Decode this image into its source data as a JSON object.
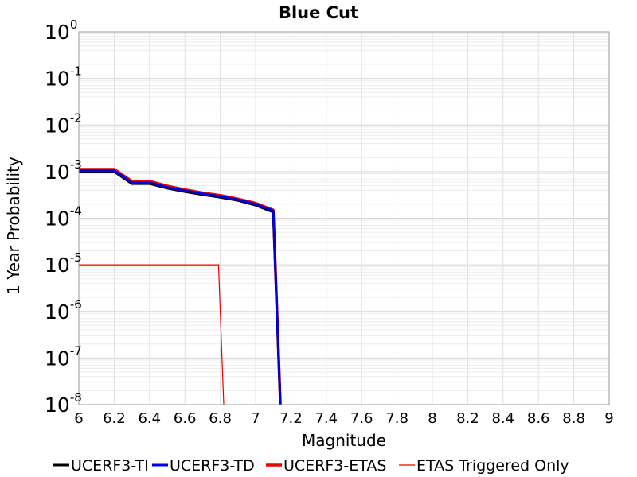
{
  "chart_data": {
    "type": "line",
    "title": "Blue Cut",
    "xlabel": "Magnitude",
    "ylabel": "1 Year Probability",
    "xlim": [
      6,
      9
    ],
    "ylim": [
      1e-08,
      1
    ],
    "yscale": "log",
    "x_ticks": [
      "6",
      "6.2",
      "6.4",
      "6.6",
      "6.8",
      "7",
      "7.2",
      "7.4",
      "7.6",
      "7.8",
      "8",
      "8.2",
      "8.4",
      "8.6",
      "8.8",
      "9"
    ],
    "y_ticks": [
      {
        "base": "10",
        "exp": "0"
      },
      {
        "base": "10",
        "exp": "-1"
      },
      {
        "base": "10",
        "exp": "-2"
      },
      {
        "base": "10",
        "exp": "-3"
      },
      {
        "base": "10",
        "exp": "-4"
      },
      {
        "base": "10",
        "exp": "-5"
      },
      {
        "base": "10",
        "exp": "-6"
      },
      {
        "base": "10",
        "exp": "-7"
      },
      {
        "base": "10",
        "exp": "-8"
      }
    ],
    "grid": true,
    "legend_position": "bottom",
    "series": [
      {
        "name": "UCERF3-TI",
        "color": "#000000",
        "points": [
          [
            6.0,
            0.001
          ],
          [
            6.2,
            0.001
          ],
          [
            6.3,
            0.00055
          ],
          [
            6.4,
            0.00055
          ],
          [
            6.5,
            0.00044
          ],
          [
            6.6,
            0.00037
          ],
          [
            6.7,
            0.00032
          ],
          [
            6.8,
            0.00028
          ],
          [
            6.9,
            0.00024
          ],
          [
            7.0,
            0.00019
          ],
          [
            7.1,
            0.000135
          ],
          [
            7.14,
            1e-08
          ]
        ]
      },
      {
        "name": "UCERF3-TD",
        "color": "#0000dd",
        "points": [
          [
            6.0,
            0.00105
          ],
          [
            6.2,
            0.00105
          ],
          [
            6.3,
            0.00058
          ],
          [
            6.4,
            0.00058
          ],
          [
            6.5,
            0.00046
          ],
          [
            6.6,
            0.00039
          ],
          [
            6.7,
            0.000335
          ],
          [
            6.8,
            0.000295
          ],
          [
            6.9,
            0.00025
          ],
          [
            7.0,
            0.0002
          ],
          [
            7.1,
            0.000145
          ],
          [
            7.14,
            1e-08
          ]
        ]
      },
      {
        "name": "UCERF3-ETAS",
        "color": "#ee0000",
        "points": [
          [
            6.0,
            0.00112
          ],
          [
            6.2,
            0.00112
          ],
          [
            6.3,
            0.00062
          ],
          [
            6.4,
            0.00062
          ],
          [
            6.5,
            0.00049
          ],
          [
            6.6,
            0.00041
          ],
          [
            6.7,
            0.00035
          ],
          [
            6.8,
            0.00031
          ],
          [
            6.9,
            0.00026
          ],
          [
            7.0,
            0.00021
          ],
          [
            7.1,
            0.00015
          ],
          [
            7.14,
            1e-08
          ]
        ]
      },
      {
        "name": "ETAS Triggered Only",
        "color": "#ee0000",
        "points": [
          [
            6.0,
            1e-05
          ],
          [
            6.79,
            1e-05
          ],
          [
            6.82,
            1e-08
          ]
        ]
      }
    ]
  }
}
